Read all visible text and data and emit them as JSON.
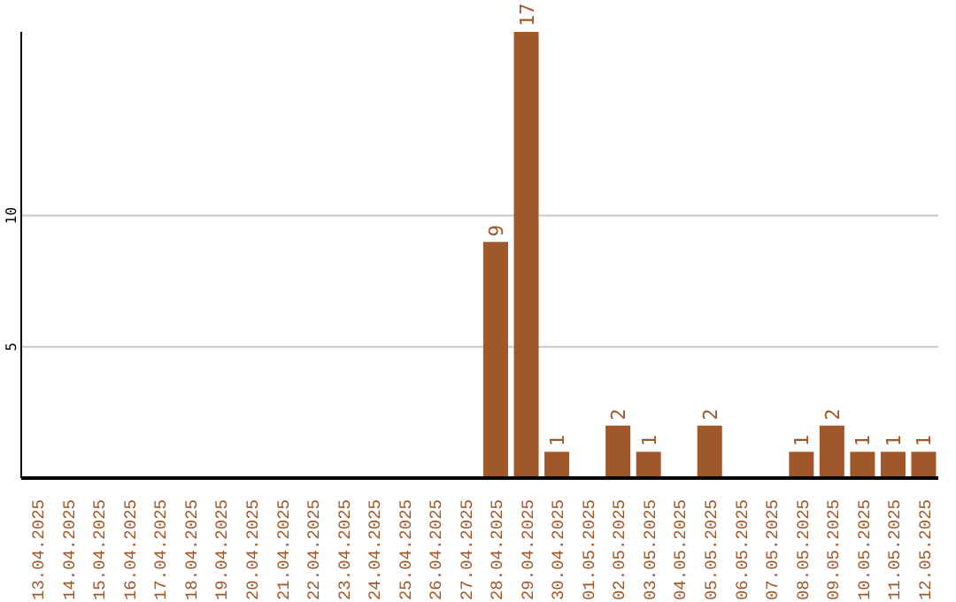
{
  "chart_data": {
    "type": "bar",
    "categories": [
      "13.04.2025",
      "14.04.2025",
      "15.04.2025",
      "16.04.2025",
      "17.04.2025",
      "18.04.2025",
      "19.04.2025",
      "20.04.2025",
      "21.04.2025",
      "22.04.2025",
      "23.04.2025",
      "24.04.2025",
      "25.04.2025",
      "26.04.2025",
      "27.04.2025",
      "28.04.2025",
      "29.04.2025",
      "30.04.2025",
      "01.05.2025",
      "02.05.2025",
      "03.05.2025",
      "04.05.2025",
      "05.05.2025",
      "06.05.2025",
      "07.05.2025",
      "08.05.2025",
      "09.05.2025",
      "10.05.2025",
      "11.05.2025",
      "12.05.2025"
    ],
    "values": [
      0,
      0,
      0,
      0,
      0,
      0,
      0,
      0,
      0,
      0,
      0,
      0,
      0,
      0,
      0,
      9,
      17,
      1,
      0,
      2,
      1,
      0,
      2,
      0,
      0,
      1,
      2,
      1,
      1,
      1
    ],
    "value_labels": [
      null,
      null,
      null,
      null,
      null,
      null,
      null,
      null,
      null,
      null,
      null,
      null,
      null,
      null,
      null,
      "9",
      "17",
      "1",
      null,
      "2",
      "1",
      null,
      "2",
      null,
      null,
      "1",
      "2",
      "1",
      "1",
      "1"
    ],
    "color": "#a0582a",
    "ylim": [
      0,
      17
    ],
    "yticks": [
      5,
      10
    ],
    "grid": "y"
  }
}
